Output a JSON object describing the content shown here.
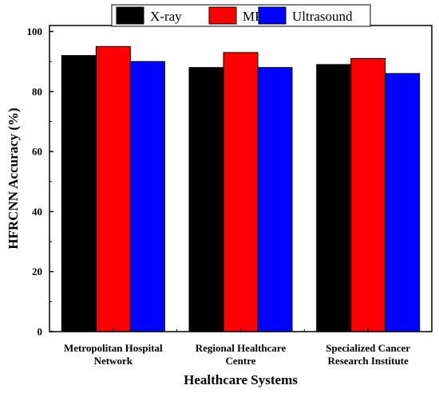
{
  "chart_data": {
    "type": "bar",
    "title": "",
    "xlabel": "Healthcare Systems",
    "ylabel": "HFRCNN Accuracy (%)",
    "ylim": [
      0,
      102
    ],
    "yticks": [
      0,
      20,
      40,
      60,
      80,
      100
    ],
    "grid": false,
    "legend_position": "top-center",
    "categories": [
      [
        "Metropolitan Hospital",
        "Network"
      ],
      [
        "Regional Healthcare",
        "Centre"
      ],
      [
        "Specialized Cancer",
        "Research Institute"
      ]
    ],
    "series": [
      {
        "name": "X-ray",
        "color": "#000000",
        "values": [
          92,
          88,
          89
        ]
      },
      {
        "name": "MRI",
        "color": "#ff0000",
        "values": [
          95,
          93,
          91
        ]
      },
      {
        "name": "Ultrasound",
        "color": "#0000ff",
        "values": [
          90,
          88,
          86
        ]
      }
    ]
  }
}
